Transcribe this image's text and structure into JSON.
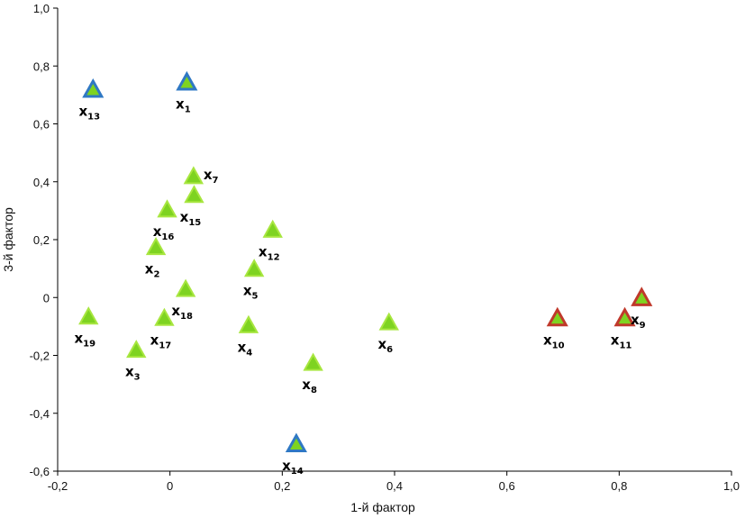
{
  "chart_data": {
    "type": "scatter",
    "title": "",
    "xlabel": "1-й фактор",
    "ylabel": "3-й фактор",
    "xlim": [
      -0.2,
      1.0
    ],
    "ylim": [
      -0.6,
      1.0
    ],
    "x_ticks": [
      -0.2,
      0,
      0.2,
      0.4,
      0.6,
      0.8,
      1.0
    ],
    "x_tick_labels": [
      "-0,2",
      "0",
      "0,2",
      "0,4",
      "0,6",
      "0,8",
      "1,0"
    ],
    "y_ticks": [
      1.0,
      0.8,
      0.6,
      0.4,
      0.2,
      0,
      -0.2,
      -0.4,
      -0.6
    ],
    "y_tick_labels": [
      "1,0",
      "0,8",
      "0,6",
      "0,4",
      "0,2",
      "0",
      "-0,2",
      "-0,4",
      "-0,6"
    ],
    "grid": false,
    "marker": "triangle",
    "colors": {
      "fill": "#7ed321",
      "outline_green": "#a8e640",
      "outline_blue": "#2f78c4",
      "outline_red": "#c0392b",
      "axis": "#000000"
    },
    "points": [
      {
        "label": "x",
        "sub": "1",
        "x": 0.03,
        "y": 0.74,
        "group": "blue",
        "label_pos": "below"
      },
      {
        "label": "x",
        "sub": "2",
        "x": -0.025,
        "y": 0.17,
        "group": "green",
        "label_pos": "below"
      },
      {
        "label": "x",
        "sub": "3",
        "x": -0.06,
        "y": -0.185,
        "group": "green",
        "label_pos": "below"
      },
      {
        "label": "x",
        "sub": "4",
        "x": 0.14,
        "y": -0.1,
        "group": "green",
        "label_pos": "below"
      },
      {
        "label": "x",
        "sub": "5",
        "x": 0.15,
        "y": 0.095,
        "group": "green",
        "label_pos": "below"
      },
      {
        "label": "x",
        "sub": "6",
        "x": 0.39,
        "y": -0.09,
        "group": "green",
        "label_pos": "below"
      },
      {
        "label": "x",
        "sub": "7",
        "x": 0.042,
        "y": 0.415,
        "group": "green",
        "label_pos": "right"
      },
      {
        "label": "x",
        "sub": "8",
        "x": 0.255,
        "y": -0.23,
        "group": "green",
        "label_pos": "below"
      },
      {
        "label": "x",
        "sub": "9",
        "x": 0.84,
        "y": -0.005,
        "group": "red",
        "label_pos": "below"
      },
      {
        "label": "x",
        "sub": "10",
        "x": 0.69,
        "y": -0.075,
        "group": "red",
        "label_pos": "below"
      },
      {
        "label": "x",
        "sub": "11",
        "x": 0.81,
        "y": -0.075,
        "group": "red",
        "label_pos": "below"
      },
      {
        "label": "x",
        "sub": "12",
        "x": 0.183,
        "y": 0.23,
        "group": "green",
        "label_pos": "below"
      },
      {
        "label": "x",
        "sub": "13",
        "x": -0.137,
        "y": 0.715,
        "group": "blue",
        "label_pos": "below"
      },
      {
        "label": "x",
        "sub": "14",
        "x": 0.225,
        "y": -0.51,
        "group": "blue",
        "label_pos": "below"
      },
      {
        "label": "x",
        "sub": "15",
        "x": 0.043,
        "y": 0.35,
        "group": "green",
        "label_pos": "below"
      },
      {
        "label": "x",
        "sub": "16",
        "x": -0.005,
        "y": 0.3,
        "group": "green",
        "label_pos": "below"
      },
      {
        "label": "x",
        "sub": "17",
        "x": -0.01,
        "y": -0.075,
        "group": "green",
        "label_pos": "below"
      },
      {
        "label": "x",
        "sub": "18",
        "x": 0.028,
        "y": 0.025,
        "group": "green",
        "label_pos": "below"
      },
      {
        "label": "x",
        "sub": "19",
        "x": -0.145,
        "y": -0.07,
        "group": "green",
        "label_pos": "below"
      }
    ]
  }
}
